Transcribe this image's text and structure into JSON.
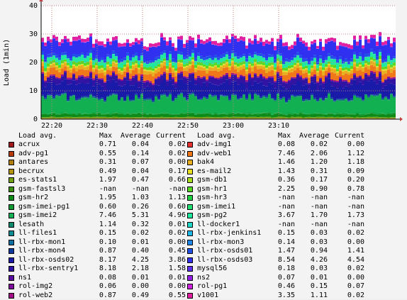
{
  "chart_data": {
    "type": "area",
    "stacked": true,
    "title": "",
    "ylabel": "Load (1min)",
    "ylim": [
      0,
      40
    ],
    "yticks": [
      0,
      10,
      20,
      30,
      40
    ],
    "xticks": [
      "22:20",
      "22:30",
      "22:40",
      "22:50",
      "23:00",
      "23:10"
    ],
    "grid": true,
    "legend_columns": {
      "header": [
        "Load avg.",
        "Max",
        "Average",
        "Current"
      ]
    },
    "series": [
      {
        "name": "acrux",
        "color": "#a01c1c",
        "max": "0.71",
        "avg": "0.04",
        "cur": "0.02"
      },
      {
        "name": "adv-pg1",
        "color": "#b83b0c",
        "max": "0.55",
        "avg": "0.14",
        "cur": "0.02"
      },
      {
        "name": "antares",
        "color": "#b07c10",
        "max": "0.31",
        "avg": "0.07",
        "cur": "0.00"
      },
      {
        "name": "becrux",
        "color": "#b4920c",
        "max": "0.49",
        "avg": "0.04",
        "cur": "0.17"
      },
      {
        "name": "es-stats1",
        "color": "#74a012",
        "max": "1.97",
        "avg": "0.47",
        "cur": "0.66"
      },
      {
        "name": "gsm-fastsl3",
        "color": "#3a8e14",
        "max": "-nan",
        "avg": "-nan",
        "cur": "-nan"
      },
      {
        "name": "gsm-hr2",
        "color": "#0e8a18",
        "max": "1.95",
        "avg": "1.03",
        "cur": "1.13"
      },
      {
        "name": "gsm-imei-pg1",
        "color": "#0e9a30",
        "max": "0.60",
        "avg": "0.26",
        "cur": "0.60"
      },
      {
        "name": "gsm-imei2",
        "color": "#12b050",
        "max": "7.46",
        "avg": "5.31",
        "cur": "4.96"
      },
      {
        "name": "lesath",
        "color": "#0e8a6a",
        "max": "1.14",
        "avg": "0.32",
        "cur": "0.01"
      },
      {
        "name": "ll-files1",
        "color": "#0e8a94",
        "max": "0.15",
        "avg": "0.02",
        "cur": "0.02"
      },
      {
        "name": "ll-rbx-mon1",
        "color": "#0e6ea0",
        "max": "0.10",
        "avg": "0.01",
        "cur": "0.00"
      },
      {
        "name": "ll-rbx-mon4",
        "color": "#0e3aa0",
        "max": "0.87",
        "avg": "0.40",
        "cur": "0.45"
      },
      {
        "name": "ll-rbx-osds02",
        "color": "#1a1aa8",
        "max": "8.17",
        "avg": "4.25",
        "cur": "3.86"
      },
      {
        "name": "ll-rbx-sentry1",
        "color": "#3214a4",
        "max": "8.18",
        "avg": "2.18",
        "cur": "1.58"
      },
      {
        "name": "ns1",
        "color": "#5c0ea0",
        "max": "0.08",
        "avg": "0.01",
        "cur": "0.01"
      },
      {
        "name": "rol-img2",
        "color": "#7e0e9a",
        "max": "0.06",
        "avg": "0.00",
        "cur": "0.00"
      },
      {
        "name": "rol-web2",
        "color": "#a00e86",
        "max": "0.87",
        "avg": "0.49",
        "cur": "0.55"
      },
      {
        "name": "adv-img1",
        "color": "#e83030",
        "max": "0.08",
        "avg": "0.02",
        "cur": "0.00"
      },
      {
        "name": "adv-web1",
        "color": "#f07818",
        "max": "7.46",
        "avg": "2.06",
        "cur": "1.12"
      },
      {
        "name": "bak4",
        "color": "#e8b020",
        "max": "1.46",
        "avg": "1.20",
        "cur": "1.18"
      },
      {
        "name": "es-mail2",
        "color": "#e8e020",
        "max": "1.43",
        "avg": "0.31",
        "cur": "0.09"
      },
      {
        "name": "gsm-db1",
        "color": "#a8e020",
        "max": "0.36",
        "avg": "0.17",
        "cur": "0.20"
      },
      {
        "name": "gsm-hr1",
        "color": "#58d820",
        "max": "2.25",
        "avg": "0.90",
        "cur": "0.78"
      },
      {
        "name": "gsm-hr3",
        "color": "#20d040",
        "max": "-nan",
        "avg": "-nan",
        "cur": "-nan"
      },
      {
        "name": "gsm-imei1",
        "color": "#20e070",
        "max": "-nan",
        "avg": "-nan",
        "cur": "-nan"
      },
      {
        "name": "gsm-pg2",
        "color": "#20e8a0",
        "max": "3.67",
        "avg": "1.70",
        "cur": "1.73"
      },
      {
        "name": "ll-docker1",
        "color": "#20d8c8",
        "max": "-nan",
        "avg": "-nan",
        "cur": "-nan"
      },
      {
        "name": "ll-rbx-jenkins1",
        "color": "#20b8e8",
        "max": "0.15",
        "avg": "0.03",
        "cur": "0.02"
      },
      {
        "name": "ll-rbx-mon3",
        "color": "#2088e8",
        "max": "0.14",
        "avg": "0.03",
        "cur": "0.00"
      },
      {
        "name": "ll-rbx-osds01",
        "color": "#2050e8",
        "max": "1.47",
        "avg": "0.94",
        "cur": "1.41"
      },
      {
        "name": "ll-rbx-osds03",
        "color": "#3030f0",
        "max": "8.54",
        "avg": "4.26",
        "cur": "4.54"
      },
      {
        "name": "mysql56",
        "color": "#6030f0",
        "max": "0.18",
        "avg": "0.03",
        "cur": "0.02"
      },
      {
        "name": "ns2",
        "color": "#9020e8",
        "max": "0.07",
        "avg": "0.01",
        "cur": "0.00"
      },
      {
        "name": "rol-pg1",
        "color": "#d020e0",
        "max": "0.46",
        "avg": "0.15",
        "cur": "0.07"
      },
      {
        "name": "v1001",
        "color": "#e020a0",
        "max": "3.35",
        "avg": "1.11",
        "cur": "0.02"
      }
    ]
  }
}
